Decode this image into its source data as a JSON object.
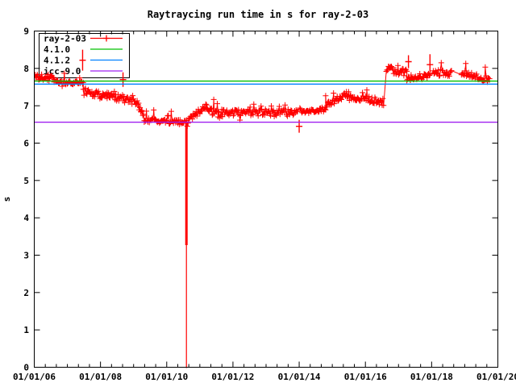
{
  "chart_data": {
    "type": "scatter",
    "title": "Raytraycing run time in s for ray-2-03",
    "xlabel": "",
    "ylabel": "s",
    "ylim": [
      0,
      9
    ],
    "y_ticks": [
      0,
      1,
      2,
      3,
      4,
      5,
      6,
      7,
      8,
      9
    ],
    "x_range_years": [
      2006,
      2020
    ],
    "x_major_tick_years": [
      2006,
      2008,
      2010,
      2012,
      2014,
      2016,
      2018,
      2020
    ],
    "x_tick_labels": [
      "01/01/06",
      "01/01/08",
      "01/01/10",
      "01/01/12",
      "01/01/14",
      "01/01/16",
      "01/01/18",
      "01/01/20"
    ],
    "x_minor_tick_months": 4,
    "grid": false,
    "legend_position": "top-left",
    "reference_lines": [
      {
        "name": "4.1.0",
        "value": 7.66,
        "color": "#00c000"
      },
      {
        "name": "4.1.2",
        "value": 7.58,
        "color": "#0080ff"
      },
      {
        "name": "icc-9.0",
        "value": 6.56,
        "color": "#a020f0"
      }
    ],
    "series": {
      "name": "ray-2-03",
      "color": "#ff0000",
      "marker": "plus",
      "style": "linespoints",
      "segments": [
        {
          "from": 2006.0,
          "to": 2006.6,
          "v1": 7.8,
          "v2": 7.74,
          "jitter": 0.09
        },
        {
          "from": 2006.6,
          "to": 2007.48,
          "v1": 7.64,
          "v2": 7.6,
          "jitter": 0.055
        },
        {
          "from": 2007.48,
          "to": 2008.2,
          "v1": 7.42,
          "v2": 7.22,
          "jitter": 0.09
        },
        {
          "from": 2008.2,
          "to": 2009.15,
          "v1": 7.28,
          "v2": 7.1,
          "jitter": 0.1
        },
        {
          "from": 2009.15,
          "to": 2009.32,
          "v1": 6.95,
          "v2": 6.75,
          "jitter": 0.07
        },
        {
          "from": 2009.32,
          "to": 2010.58,
          "v1": 6.62,
          "v2": 6.55,
          "jitter": 0.06
        },
        {
          "from": 2010.6,
          "to": 2011.2,
          "v1": 6.6,
          "v2": 6.98,
          "jitter": 0.08
        },
        {
          "from": 2011.2,
          "to": 2011.55,
          "v1": 6.95,
          "v2": 6.78,
          "jitter": 0.08
        },
        {
          "from": 2011.55,
          "to": 2013.95,
          "v1": 6.8,
          "v2": 6.82,
          "jitter": 0.1
        },
        {
          "from": 2014.02,
          "to": 2014.8,
          "v1": 6.85,
          "v2": 6.9,
          "jitter": 0.07
        },
        {
          "from": 2014.8,
          "to": 2015.45,
          "v1": 7.0,
          "v2": 7.32,
          "jitter": 0.08
        },
        {
          "from": 2015.45,
          "to": 2016.55,
          "v1": 7.25,
          "v2": 7.1,
          "jitter": 0.09
        },
        {
          "from": 2016.63,
          "to": 2017.25,
          "v1": 7.98,
          "v2": 7.88,
          "jitter": 0.1
        },
        {
          "from": 2017.25,
          "to": 2017.95,
          "v1": 7.75,
          "v2": 7.8,
          "jitter": 0.08
        },
        {
          "from": 2018.05,
          "to": 2018.6,
          "v1": 7.9,
          "v2": 7.86,
          "jitter": 0.09
        },
        {
          "from": 2018.9,
          "to": 2019.75,
          "v1": 7.88,
          "v2": 7.7,
          "jitter": 0.08
        }
      ],
      "outliers": [
        {
          "x": 2007.46,
          "v": 8.22,
          "armV": 13,
          "armH": 4
        },
        {
          "x": 2008.68,
          "v": 7.7,
          "armV": 9,
          "armH": 4
        },
        {
          "x": 2014.0,
          "v": 6.45,
          "armV": 8,
          "armH": 4
        },
        {
          "x": 2017.3,
          "v": 8.18,
          "armV": 8,
          "armH": 4
        },
        {
          "x": 2017.95,
          "v": 8.1,
          "armV": 13,
          "armH": 4
        }
      ],
      "dropout": {
        "x": 2010.595,
        "v_top": 6.52,
        "v_mid": 3.27,
        "v_bottom": 0.0
      }
    },
    "legend": [
      {
        "label": "ray-2-03",
        "color": "#ff0000",
        "sample": "line-plus"
      },
      {
        "label": "4.1.0",
        "color": "#00c000",
        "sample": "line"
      },
      {
        "label": "4.1.2",
        "color": "#0080ff",
        "sample": "line"
      },
      {
        "label": "icc-9.0",
        "color": "#a020f0",
        "sample": "line"
      }
    ]
  },
  "colors": {
    "series": "#ff0000",
    "ref_410": "#00c000",
    "ref_412": "#0080ff",
    "ref_icc90": "#a020f0",
    "axis": "#000000",
    "background": "#ffffff"
  }
}
